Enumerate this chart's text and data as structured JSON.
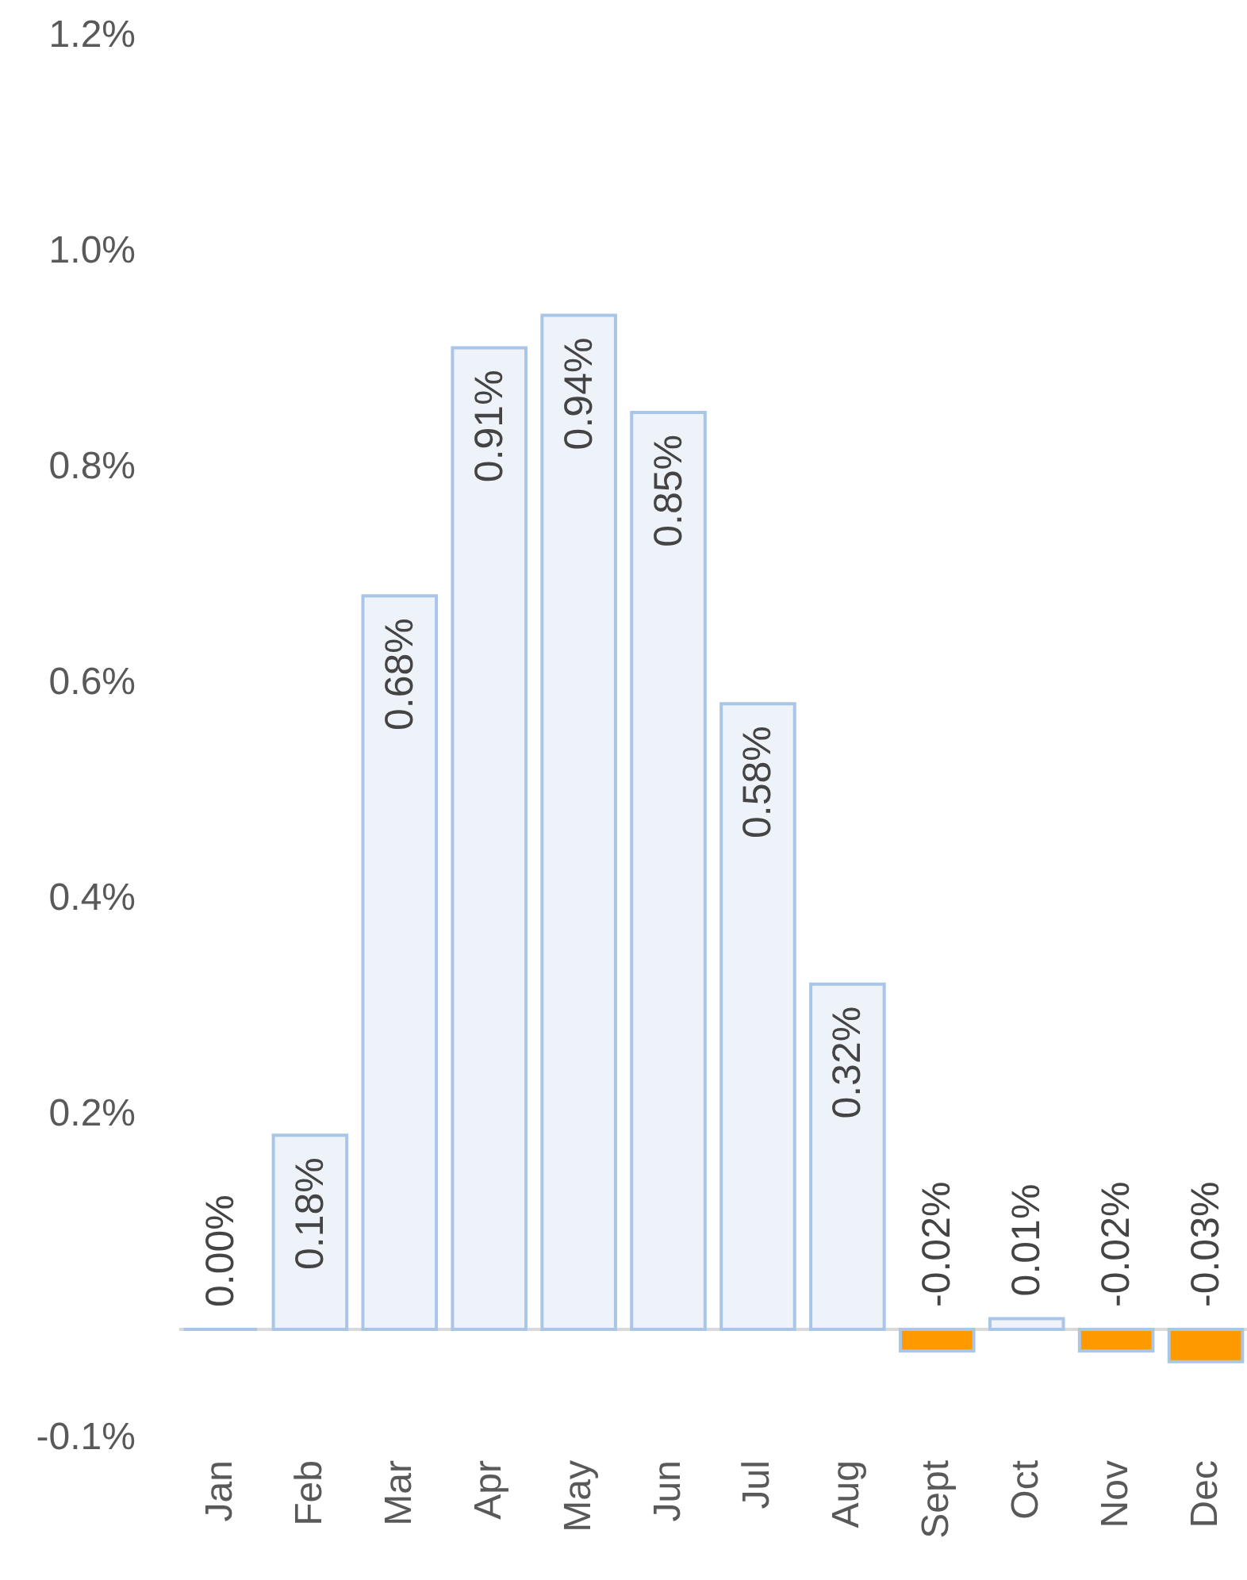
{
  "chart_data": {
    "type": "bar",
    "categories": [
      "Jan",
      "Feb",
      "Mar",
      "Apr",
      "May",
      "Jun",
      "Jul",
      "Aug",
      "Sept",
      "Oct",
      "Nov",
      "Dec"
    ],
    "values": [
      0.0,
      0.18,
      0.68,
      0.91,
      0.94,
      0.85,
      0.58,
      0.32,
      -0.02,
      0.01,
      -0.02,
      -0.03
    ],
    "colors": [
      "#a9c6e8",
      "#eef2f9",
      "#eef2f9",
      "#eef2f9",
      "#eef2f9",
      "#eef2f9",
      "#eef2f9",
      "#eef2f9",
      "#ff9900",
      "#eef2f9",
      "#ff9900",
      "#ff9900"
    ],
    "value_labels": [
      "0.00%",
      "0.18%",
      "0.68%",
      "0.91%",
      "0.94%",
      "0.85%",
      "0.58%",
      "0.32%",
      "-0.02%",
      "0.01%",
      "-0.02%",
      "-0.03%"
    ],
    "ylim": [
      -0.1,
      1.2
    ],
    "yticks": [
      {
        "value": 1.2,
        "label": "1.2%"
      },
      {
        "value": 1.0,
        "label": "1.0%"
      },
      {
        "value": 0.8,
        "label": "0.8%"
      },
      {
        "value": 0.6,
        "label": "0.6%"
      },
      {
        "value": 0.4,
        "label": "0.4%"
      },
      {
        "value": 0.2,
        "label": "0.2%"
      },
      {
        "value": -0.1,
        "label": "-0.1%"
      }
    ],
    "ref_lines": [
      {
        "axis": "y",
        "value": 0,
        "color": "#d9d9d9"
      }
    ]
  }
}
